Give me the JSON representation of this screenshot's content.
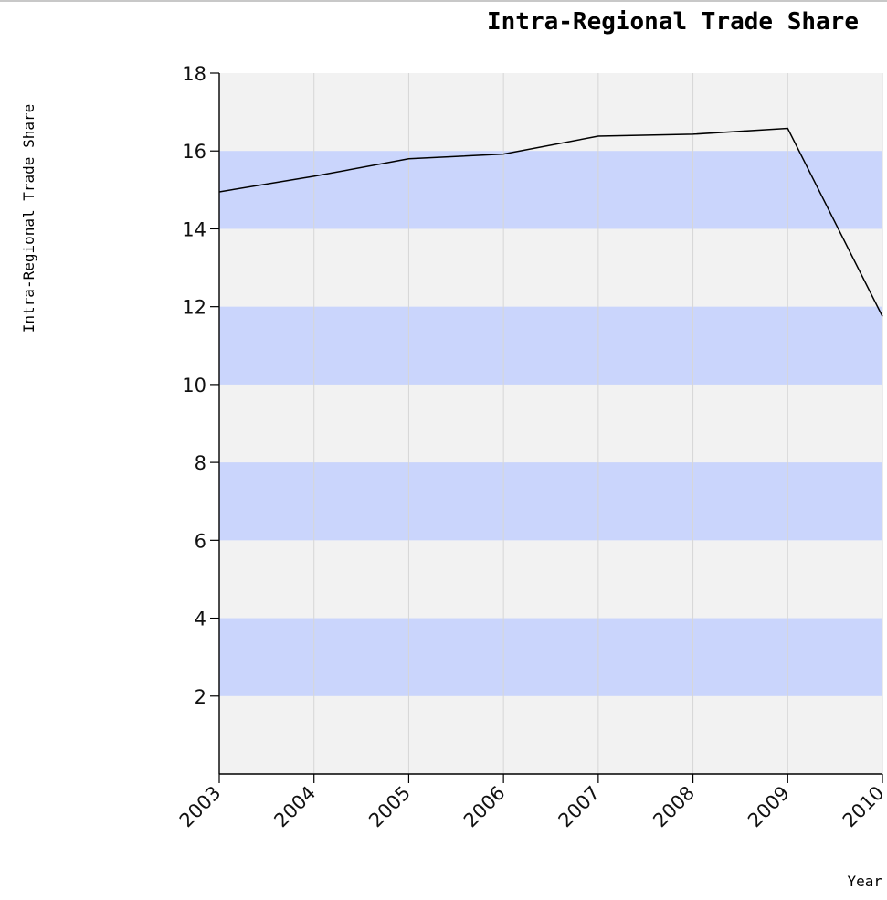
{
  "chart_data": {
    "type": "line",
    "title": "Intra-Regional Trade Share",
    "xlabel": "Year",
    "ylabel": "Intra-Regional Trade Share",
    "categories": [
      "2003",
      "2004",
      "2005",
      "2006",
      "2007",
      "2008",
      "2009",
      "2010"
    ],
    "series": [
      {
        "values": [
          14.95,
          15.35,
          15.8,
          15.92,
          16.38,
          16.43,
          16.58,
          11.75
        ]
      }
    ],
    "ylim": [
      0,
      18
    ],
    "yticks": [
      2,
      4,
      6,
      8,
      10,
      12,
      14,
      16,
      18
    ],
    "grid": {
      "vertical": true,
      "horizontal_bands": true
    },
    "colors": {
      "line": "#000000",
      "band": "#cad5fc",
      "plot_background": "#f2f2f2",
      "vertical_grid": "#d7d7d7"
    }
  }
}
